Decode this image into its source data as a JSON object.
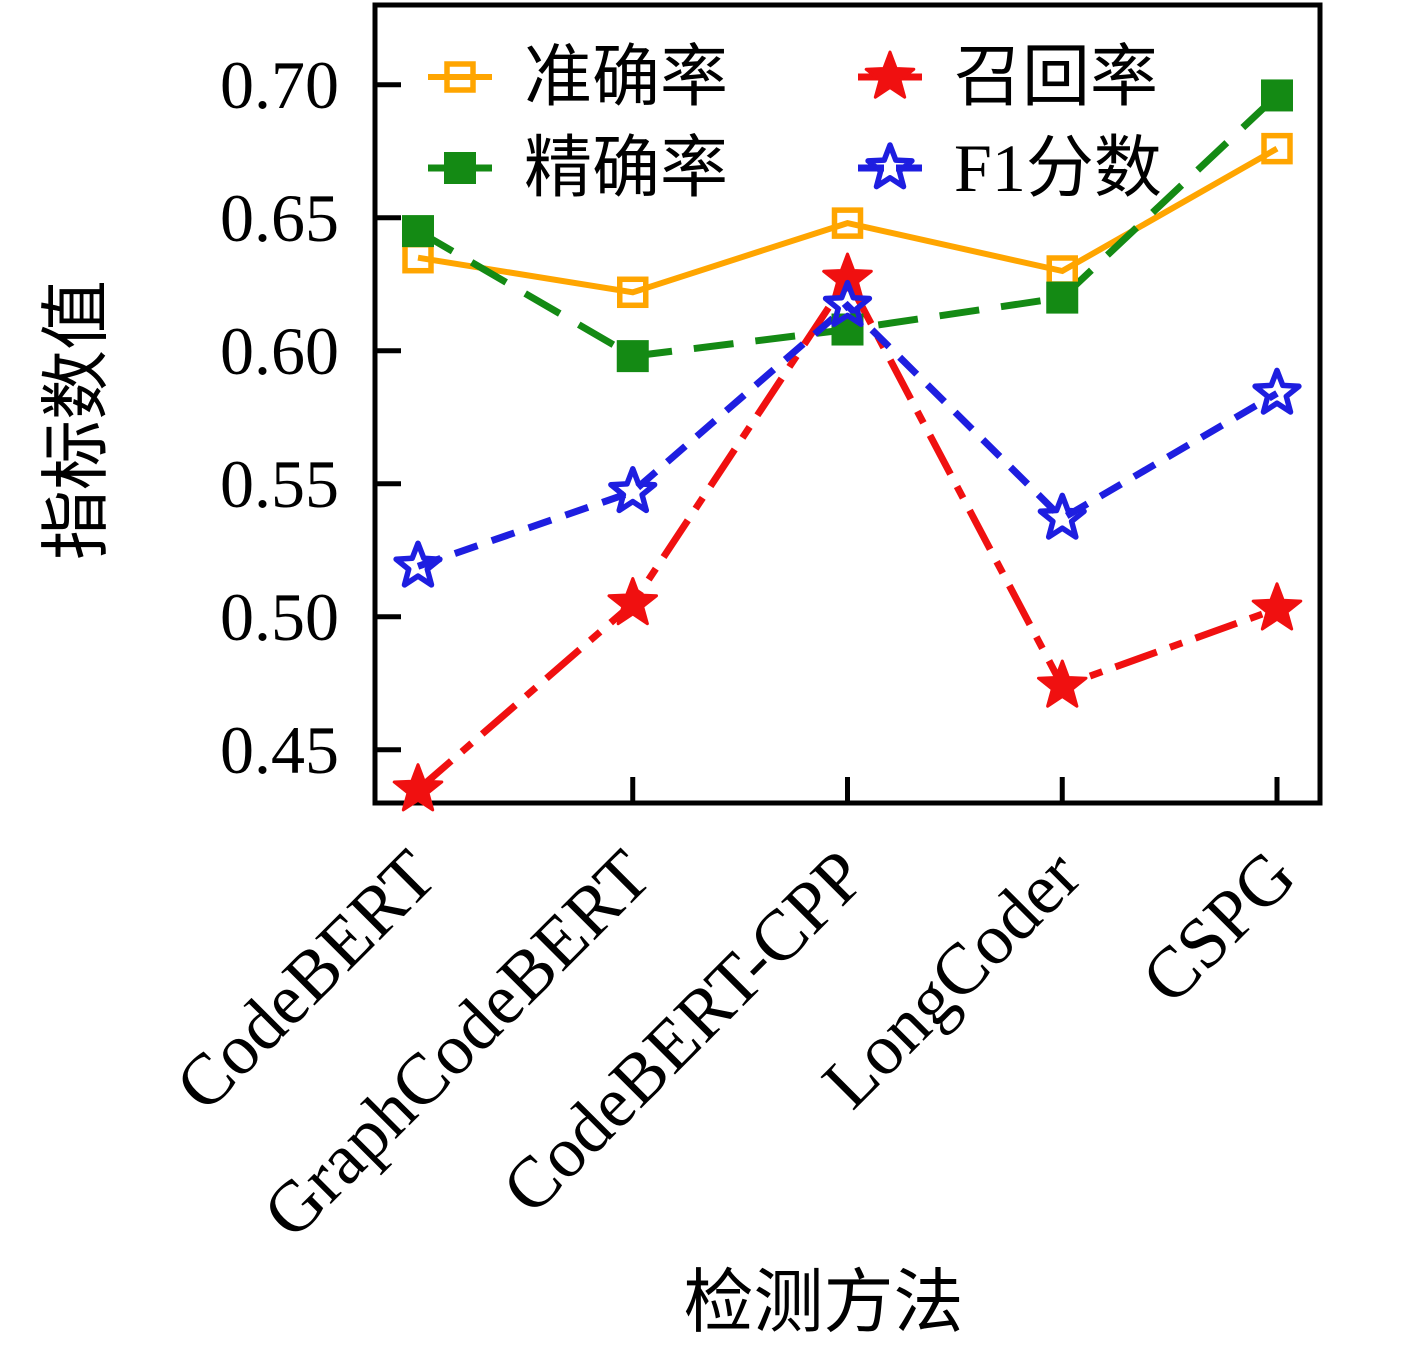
{
  "figure": {
    "background": "#ffffff",
    "frame_color": "#000000"
  },
  "chart_data": {
    "type": "line",
    "title": "",
    "xlabel": "检测方法",
    "ylabel": "指标数值",
    "categories": [
      "CodeBERT",
      "GraphCodeBERT",
      "CodeBERT-CPP",
      "LongCoder",
      "CSPG"
    ],
    "ylim": [
      0.43,
      0.73
    ],
    "yticks": [
      0.45,
      0.5,
      0.55,
      0.6,
      0.65,
      0.7
    ],
    "ytick_labels": [
      "0.45",
      "0.50",
      "0.55",
      "0.60",
      "0.65",
      "0.70"
    ],
    "grid": false,
    "legend": {
      "location": "upper-left-inside",
      "columns": 2,
      "order_row_major": [
        "准确率",
        "召回率",
        "精确率",
        "F1分数"
      ]
    },
    "series": [
      {
        "name": "准确率",
        "color": "#FFA500",
        "line_style": "solid",
        "marker": "open-square",
        "values": [
          0.635,
          0.622,
          0.648,
          0.63,
          0.676
        ]
      },
      {
        "name": "召回率",
        "color": "#F01010",
        "line_style": "dash-dot",
        "marker": "filled-star",
        "values": [
          0.435,
          0.505,
          0.627,
          0.474,
          0.503
        ]
      },
      {
        "name": "精确率",
        "color": "#148A14",
        "line_style": "long-dash",
        "marker": "filled-square",
        "values": [
          0.645,
          0.598,
          0.608,
          0.62,
          0.696
        ]
      },
      {
        "name": "F1分数",
        "color": "#1E1EE0",
        "line_style": "dashed",
        "marker": "open-star",
        "values": [
          0.519,
          0.547,
          0.617,
          0.537,
          0.584
        ]
      }
    ]
  }
}
